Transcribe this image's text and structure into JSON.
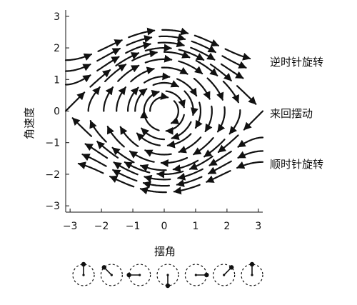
{
  "diagram": {
    "xlabel": "摆角",
    "ylabel": "角速度",
    "xlim": [
      -3.14,
      3.14
    ],
    "ylim": [
      -3.2,
      3.2
    ],
    "xticks": [
      -3,
      -2,
      -1,
      0,
      1,
      2,
      3
    ],
    "yticks": [
      -3,
      -2,
      -1,
      0,
      1,
      2,
      3
    ],
    "annotations": [
      {
        "id": "ccw",
        "text": "逆时针旋转"
      },
      {
        "id": "osc",
        "text": "来回摆动"
      },
      {
        "id": "cw",
        "text": "顺时针旋转"
      }
    ],
    "separatrix_energy": 2,
    "oscillation_energies": [
      0.1,
      0.2,
      0.4,
      0.6,
      0.95,
      1.35,
      1.75
    ],
    "rotation_energies": [
      2.35,
      2.8,
      3.3
    ],
    "pendulum_positions": [
      -3.14159,
      -2.36,
      -1.57,
      0,
      1.57,
      2.36,
      3.14159
    ],
    "stroke_color": "#111111"
  }
}
